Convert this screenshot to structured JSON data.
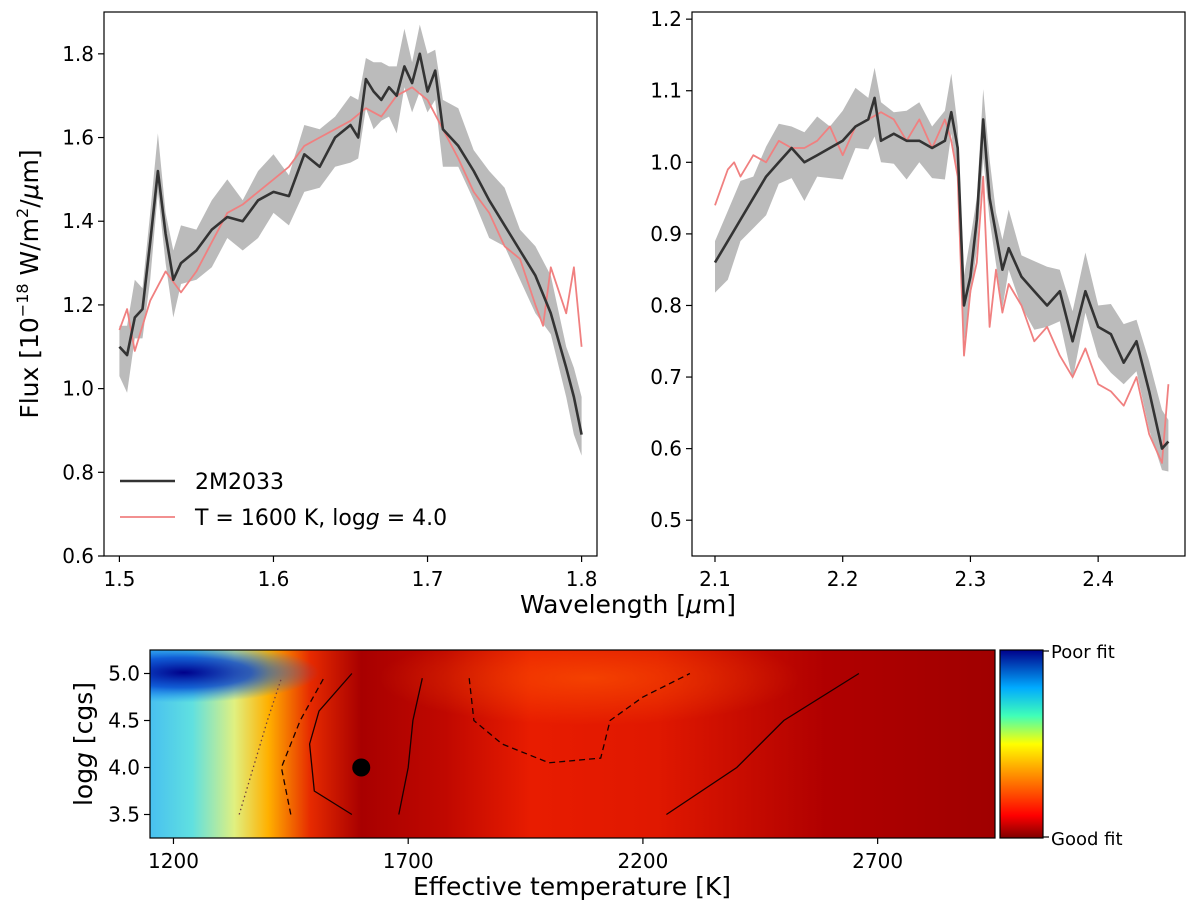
{
  "chart_data": [
    {
      "type": "line",
      "panel": "top-left",
      "ylabel": "Flux [10^-18 W/m^2/μm]",
      "xlim": [
        1.49,
        1.81
      ],
      "ylim": [
        0.6,
        1.9
      ],
      "xticks": [
        1.5,
        1.6,
        1.7,
        1.8
      ],
      "yticks": [
        0.6,
        0.8,
        1.0,
        1.2,
        1.4,
        1.6,
        1.8
      ],
      "legend": {
        "placement": "lower-left",
        "obs_label": "2M2033",
        "model_label_prefix": "T = 1600 K, log",
        "model_label_italic": "g",
        "model_label_suffix": " = 4.0"
      },
      "series": [
        {
          "name": "2M2033",
          "color": "#333333",
          "x": [
            1.5,
            1.505,
            1.51,
            1.515,
            1.52,
            1.525,
            1.53,
            1.535,
            1.54,
            1.55,
            1.56,
            1.57,
            1.58,
            1.59,
            1.6,
            1.61,
            1.62,
            1.63,
            1.64,
            1.65,
            1.655,
            1.66,
            1.665,
            1.67,
            1.675,
            1.68,
            1.685,
            1.69,
            1.695,
            1.7,
            1.705,
            1.71,
            1.72,
            1.73,
            1.74,
            1.75,
            1.76,
            1.77,
            1.78,
            1.79,
            1.795,
            1.8
          ],
          "y": [
            1.1,
            1.08,
            1.17,
            1.19,
            1.35,
            1.52,
            1.37,
            1.26,
            1.3,
            1.33,
            1.38,
            1.41,
            1.4,
            1.45,
            1.47,
            1.46,
            1.56,
            1.53,
            1.6,
            1.63,
            1.6,
            1.74,
            1.71,
            1.69,
            1.72,
            1.7,
            1.77,
            1.73,
            1.8,
            1.71,
            1.76,
            1.62,
            1.58,
            1.52,
            1.45,
            1.39,
            1.33,
            1.27,
            1.18,
            1.05,
            0.98,
            0.89
          ]
        },
        {
          "name": "T = 1600 K, log g = 4.0",
          "color": "#f08080",
          "x": [
            1.5,
            1.505,
            1.51,
            1.52,
            1.53,
            1.54,
            1.55,
            1.56,
            1.57,
            1.58,
            1.59,
            1.6,
            1.61,
            1.62,
            1.63,
            1.64,
            1.65,
            1.66,
            1.67,
            1.68,
            1.69,
            1.7,
            1.71,
            1.72,
            1.73,
            1.74,
            1.75,
            1.76,
            1.77,
            1.775,
            1.78,
            1.79,
            1.795,
            1.8
          ],
          "y": [
            1.14,
            1.19,
            1.09,
            1.21,
            1.28,
            1.23,
            1.28,
            1.35,
            1.42,
            1.44,
            1.47,
            1.5,
            1.53,
            1.58,
            1.6,
            1.62,
            1.64,
            1.67,
            1.65,
            1.7,
            1.72,
            1.69,
            1.62,
            1.55,
            1.47,
            1.42,
            1.34,
            1.31,
            1.2,
            1.15,
            1.29,
            1.18,
            1.29,
            1.1
          ]
        }
      ],
      "band": {
        "color": "#bbbbbb",
        "halfwidth": 0.05
      }
    },
    {
      "type": "line",
      "panel": "top-right",
      "xlim": [
        2.082,
        2.468
      ],
      "ylim": [
        0.45,
        1.21
      ],
      "xticks": [
        2.1,
        2.2,
        2.3,
        2.4
      ],
      "yticks": [
        0.5,
        0.6,
        0.7,
        0.8,
        0.9,
        1.0,
        1.1,
        1.2
      ],
      "series": [
        {
          "name": "2M2033",
          "color": "#333333",
          "x": [
            2.1,
            2.11,
            2.12,
            2.13,
            2.14,
            2.15,
            2.16,
            2.17,
            2.18,
            2.19,
            2.2,
            2.21,
            2.22,
            2.225,
            2.23,
            2.24,
            2.25,
            2.26,
            2.27,
            2.28,
            2.285,
            2.29,
            2.295,
            2.3,
            2.305,
            2.31,
            2.315,
            2.32,
            2.325,
            2.33,
            2.34,
            2.35,
            2.36,
            2.37,
            2.38,
            2.39,
            2.4,
            2.41,
            2.42,
            2.43,
            2.44,
            2.45,
            2.455
          ],
          "y": [
            0.86,
            0.89,
            0.92,
            0.95,
            0.98,
            1.0,
            1.02,
            1.0,
            1.01,
            1.02,
            1.03,
            1.05,
            1.06,
            1.09,
            1.03,
            1.04,
            1.03,
            1.03,
            1.02,
            1.03,
            1.07,
            1.02,
            0.8,
            0.84,
            0.92,
            1.06,
            0.95,
            0.9,
            0.85,
            0.88,
            0.84,
            0.82,
            0.8,
            0.82,
            0.75,
            0.82,
            0.77,
            0.76,
            0.72,
            0.75,
            0.68,
            0.6,
            0.61
          ]
        },
        {
          "name": "T = 1600 K, log g = 4.0",
          "color": "#f08080",
          "x": [
            2.1,
            2.11,
            2.115,
            2.12,
            2.13,
            2.14,
            2.15,
            2.16,
            2.17,
            2.18,
            2.19,
            2.2,
            2.21,
            2.22,
            2.23,
            2.24,
            2.25,
            2.26,
            2.27,
            2.28,
            2.285,
            2.29,
            2.295,
            2.3,
            2.305,
            2.31,
            2.315,
            2.32,
            2.325,
            2.33,
            2.34,
            2.35,
            2.36,
            2.37,
            2.38,
            2.39,
            2.4,
            2.41,
            2.42,
            2.43,
            2.44,
            2.45,
            2.455
          ],
          "y": [
            0.94,
            0.99,
            1.0,
            0.98,
            1.01,
            1.0,
            1.03,
            1.02,
            1.02,
            1.03,
            1.05,
            1.01,
            1.05,
            1.06,
            1.07,
            1.06,
            1.03,
            1.06,
            1.02,
            1.06,
            1.03,
            0.98,
            0.73,
            0.82,
            0.86,
            0.98,
            0.77,
            0.85,
            0.79,
            0.83,
            0.8,
            0.75,
            0.77,
            0.73,
            0.7,
            0.74,
            0.69,
            0.68,
            0.66,
            0.7,
            0.62,
            0.58,
            0.69
          ]
        }
      ],
      "band": {
        "color": "#bbbbbb",
        "halfwidth": 0.03
      }
    },
    {
      "type": "heatmap",
      "panel": "bottom",
      "xlabel": "Effective temperature [K]",
      "ylabel_prefix": "log",
      "ylabel_italic": "g",
      "ylabel_suffix": " [cgs]",
      "xlim": [
        1150,
        2950
      ],
      "ylim": [
        3.25,
        5.25
      ],
      "xticks": [
        1200,
        1700,
        2200,
        2700
      ],
      "yticks": [
        3.5,
        4.0,
        4.5,
        5.0
      ],
      "colorbar": {
        "top_label": "Poor fit",
        "bottom_label": "Good fit"
      },
      "best_fit": {
        "teff": 1600,
        "logg": 4.0
      },
      "contours": [
        {
          "style": "dotted",
          "points": [
            [
              1340,
              3.5
            ],
            [
              1370,
              4.0
            ],
            [
              1400,
              4.5
            ],
            [
              1430,
              4.95
            ]
          ]
        },
        {
          "style": "dashed",
          "points": [
            [
              1450,
              3.5
            ],
            [
              1430,
              4.0
            ],
            [
              1470,
              4.5
            ],
            [
              1520,
              4.95
            ]
          ]
        },
        {
          "style": "solid",
          "points": [
            [
              1580,
              3.5
            ],
            [
              1500,
              3.75
            ],
            [
              1490,
              4.25
            ],
            [
              1510,
              4.6
            ],
            [
              1580,
              5.0
            ]
          ]
        },
        {
          "style": "solid",
          "points": [
            [
              1680,
              3.5
            ],
            [
              1700,
              4.0
            ],
            [
              1710,
              4.5
            ],
            [
              1730,
              4.95
            ]
          ]
        },
        {
          "style": "dashed",
          "points": [
            [
              1830,
              4.95
            ],
            [
              1840,
              4.5
            ],
            [
              1900,
              4.25
            ],
            [
              2000,
              4.05
            ],
            [
              2110,
              4.1
            ],
            [
              2130,
              4.5
            ],
            [
              2200,
              4.75
            ],
            [
              2300,
              5.0
            ]
          ]
        },
        {
          "style": "solid",
          "points": [
            [
              2250,
              3.5
            ],
            [
              2400,
              4.0
            ],
            [
              2500,
              4.5
            ],
            [
              2660,
              5.0
            ]
          ]
        }
      ]
    }
  ],
  "xlabel_top": "Wavelength [μm]"
}
